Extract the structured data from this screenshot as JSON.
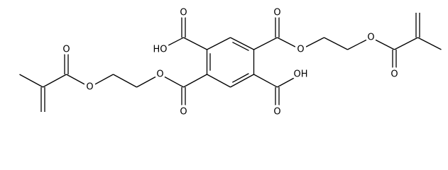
{
  "molecule": {
    "atom_labels": [
      "O",
      "HO",
      "O",
      "O",
      "O",
      "O",
      "O",
      "OH",
      "O",
      "O",
      "O",
      "O"
    ]
  }
}
